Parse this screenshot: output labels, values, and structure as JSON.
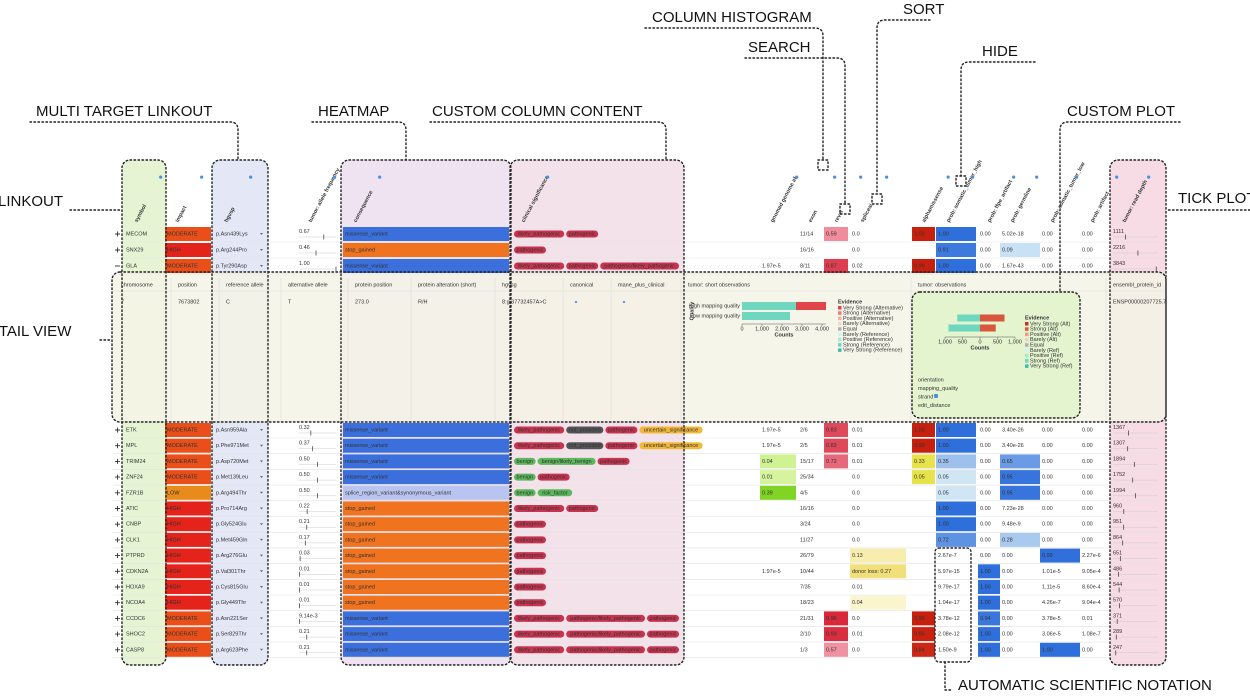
{
  "annotations": [
    "COLUMN HISTOGRAM",
    "SORT",
    "SEARCH",
    "HIDE",
    "MULTI TARGET LINKOUT",
    "HEATMAP",
    "CUSTOM COLUMN CONTENT",
    "CUSTOM PLOT",
    "LINKOUT",
    "TICK PLOT",
    "DETAIL VIEW",
    "AUTOMATIC SCIENTIFIC NOTATION"
  ],
  "table": {
    "headers": [
      "symbol",
      "impact",
      "hgvsp",
      "tumor: allele frequency",
      "consequence",
      "clinical significance",
      "gnomad genome af",
      "exon",
      "revel",
      "spliceai",
      "alphamissense",
      "prob: somatic_tumor_high",
      "prob: ffpe_artifact",
      "prob: germline",
      "prob: somatic_tumor_low",
      "prob: artifact",
      "tumor: read depth"
    ],
    "rows": [
      {
        "symbol": "MECOM",
        "impact": "MODERATE",
        "hgvsp": "p.Asn439Lys",
        "allele_frequency": "0.67",
        "consequence": "missense_variant",
        "clinical_significance": [
          "likely_pathogenic",
          "pathogenic"
        ],
        "exon": "11/14",
        "revel": "0.59",
        "spliceai": "0.0",
        "alphamissense": "1.00",
        "prob_somatic_tumor_high": "1.00",
        "prob_ffpe_artifact": "0.00",
        "prob_germline": "5.02e-18",
        "prob_somatic_tumor_low": "0.00",
        "prob_artifact": "0.00",
        "read_depth": "1111"
      },
      {
        "symbol": "SNX29",
        "impact": "HIGH",
        "hgvsp": "p.Arg244Pro",
        "allele_frequency": "0.46",
        "consequence": "stop_gained",
        "clinical_significance": [
          "pathogenic"
        ],
        "exon": "16/16",
        "spliceai": "0.0",
        "prob_somatic_tumor_high": "0.91",
        "prob_ffpe_artifact": "0.00",
        "prob_germline": "0.09",
        "prob_somatic_tumor_low": "0.00",
        "prob_artifact": "0.00",
        "read_depth": "2216"
      },
      {
        "symbol": "GLA",
        "impact": "MODERATE",
        "hgvsp": "p.Tyr290Asp",
        "allele_frequency": "1.00",
        "consequence": "missense_variant",
        "clinical_significance": [
          "likely_pathogenic",
          "pathogenic",
          "pathogenic/likely_pathogenic"
        ],
        "gnomad_genome_af": "1.97e-5",
        "exon": "8/11",
        "revel": "0.87",
        "spliceai": "0.02",
        "alphamissense": "0.99",
        "prob_somatic_tumor_high": "1.00",
        "prob_ffpe_artifact": "0.00",
        "prob_germline": "1.67e-43",
        "prob_somatic_tumor_low": "0.00",
        "prob_artifact": "0.00",
        "read_depth": "3843"
      },
      {
        "symbol": "ETK",
        "impact": "MODERATE",
        "hgvsp": "p.Asn959Ala",
        "allele_frequency": "0.32",
        "consequence": "missense_variant",
        "clinical_significance": [
          "likely_pathogenic",
          "not_provided",
          "pathogenic",
          "uncertain_significance"
        ],
        "gnomad_genome_af": "1.97e-5",
        "exon": "2/6",
        "revel": "0.83",
        "spliceai": "0.01",
        "alphamissense": "1.00",
        "prob_somatic_tumor_high": "1.00",
        "prob_ffpe_artifact": "0.00",
        "prob_germline": "3.40e-26",
        "prob_somatic_tumor_low": "0.00",
        "prob_artifact": "0.00",
        "read_depth": "1367"
      },
      {
        "symbol": "MPL",
        "impact": "MODERATE",
        "hgvsp": "p.Phe971Met",
        "allele_frequency": "0.37",
        "consequence": "missense_variant",
        "clinical_significance": [
          "likely_pathogenic",
          "not_provided",
          "pathogenic",
          "uncertain_significance"
        ],
        "gnomad_genome_af": "1.97e-5",
        "exon": "2/5",
        "revel": "0.83",
        "spliceai": "0.01",
        "alphamissense": "0.99",
        "prob_somatic_tumor_high": "1.00",
        "prob_ffpe_artifact": "0.00",
        "prob_germline": "3.40e-26",
        "prob_somatic_tumor_low": "0.00",
        "prob_artifact": "0.00",
        "read_depth": "1307"
      },
      {
        "symbol": "TRIM24",
        "impact": "MODERATE",
        "hgvsp": "p.Asp720Met",
        "allele_frequency": "0.50",
        "consequence": "missense_variant",
        "clinical_significance": [
          "benign",
          "benign/likely_benign",
          "pathogenic"
        ],
        "gnomad_genome_af": "0.04",
        "exon": "15/17",
        "revel": "0.72",
        "spliceai": "0.01",
        "alphamissense": "0.33",
        "prob_somatic_tumor_high": "0.35",
        "prob_ffpe_artifact": "0.00",
        "prob_germline": "0.65",
        "prob_somatic_tumor_low": "0.00",
        "prob_artifact": "0.00",
        "read_depth": "1894"
      },
      {
        "symbol": "ZNF24",
        "impact": "MODERATE",
        "hgvsp": "p.Met139Leu",
        "allele_frequency": "0.50",
        "consequence": "missense_variant",
        "clinical_significance": [
          "benign",
          "pathogenic"
        ],
        "gnomad_genome_af": "0.01",
        "exon": "25/34",
        "spliceai": "0.0",
        "alphamissense": "0.05",
        "prob_somatic_tumor_high": "0.05",
        "prob_ffpe_artifact": "0.00",
        "prob_germline": "0.95",
        "prob_somatic_tumor_low": "0.00",
        "prob_artifact": "0.00",
        "read_depth": "1752"
      },
      {
        "symbol": "FZR1B",
        "impact": "LOW",
        "hgvsp": "p.Arg494Thr",
        "allele_frequency": "0.50",
        "consequence": "splice_region_variant&synonymous_variant",
        "clinical_significance": [
          "benign",
          "risk_factor"
        ],
        "gnomad_genome_af": "0.39",
        "exon": "4/5",
        "spliceai": "0.0",
        "prob_somatic_tumor_high": "0.05",
        "prob_ffpe_artifact": "0.00",
        "prob_germline": "0.95",
        "prob_somatic_tumor_low": "0.00",
        "prob_artifact": "0.00",
        "read_depth": "1994"
      },
      {
        "symbol": "ATIC",
        "impact": "HIGH",
        "hgvsp": "p.Pro714Arg",
        "allele_frequency": "0.22",
        "consequence": "stop_gained",
        "clinical_significance": [
          "likely_pathogenic",
          "pathogenic"
        ],
        "exon": "16/16",
        "spliceai": "0.0",
        "prob_somatic_tumor_high": "1.00",
        "prob_ffpe_artifact": "0.00",
        "prob_germline": "7.23e-28",
        "prob_somatic_tumor_low": "0.00",
        "prob_artifact": "0.00",
        "read_depth": "960"
      },
      {
        "symbol": "CNBP",
        "impact": "HIGH",
        "hgvsp": "p.Gly524Glu",
        "allele_frequency": "0.21",
        "consequence": "stop_gained",
        "clinical_significance": [
          "pathogenic"
        ],
        "exon": "3/24",
        "spliceai": "0.0",
        "prob_somatic_tumor_high": "1.00",
        "prob_ffpe_artifact": "0.00",
        "prob_germline": "9.48e-9",
        "prob_somatic_tumor_low": "0.00",
        "prob_artifact": "0.00",
        "read_depth": "951"
      },
      {
        "symbol": "CLK1",
        "impact": "HIGH",
        "hgvsp": "p.Met459Gln",
        "allele_frequency": "0.17",
        "consequence": "stop_gained",
        "clinical_significance": [
          "pathogenic"
        ],
        "exon": "11/27",
        "spliceai": "0.0",
        "prob_somatic_tumor_high": "0.72",
        "prob_ffpe_artifact": "0.00",
        "prob_germline": "0.28",
        "prob_somatic_tumor_low": "0.00",
        "prob_artifact": "0.00",
        "read_depth": "864"
      },
      {
        "symbol": "PTPRD",
        "impact": "HIGH",
        "hgvsp": "p.Arg276Glu",
        "allele_frequency": "0.03",
        "consequence": "stop_gained",
        "clinical_significance": [
          "pathogenic"
        ],
        "exon": "26/79",
        "spliceai": "0.13",
        "prob_somatic_tumor_high": "2.67e-7",
        "prob_ffpe_artifact": "0.00",
        "prob_germline": "0.00",
        "prob_somatic_tumor_low": "0.99",
        "prob_artifact": "2.27e-6",
        "read_depth": "651"
      },
      {
        "symbol": "CDKN2A",
        "impact": "HIGH",
        "hgvsp": "p.Val301Thr",
        "allele_frequency": "0.01",
        "consequence": "stop_gained",
        "clinical_significance": [
          "pathogenic"
        ],
        "gnomad_genome_af": "1.97e-5",
        "exon": "10/44",
        "spliceai": "donor loss: 0.27",
        "prob_somatic_tumor_high": "5.97e-15",
        "prob_ffpe_artifact": "1.00",
        "prob_germline": "0.00",
        "prob_somatic_tumor_low": "1.01e-5",
        "prob_artifact": "9.05e-4",
        "read_depth": "486"
      },
      {
        "symbol": "HOXA9",
        "impact": "HIGH",
        "hgvsp": "p.Cys815Glu",
        "allele_frequency": "0.01",
        "consequence": "stop_gained",
        "clinical_significance": [
          "pathogenic"
        ],
        "exon": "7/35",
        "spliceai": "0.01",
        "prob_somatic_tumor_high": "9.79e-17",
        "prob_ffpe_artifact": "1.00",
        "prob_germline": "0.00",
        "prob_somatic_tumor_low": "1.11e-5",
        "prob_artifact": "8.60e-4",
        "read_depth": "544"
      },
      {
        "symbol": "NCOA4",
        "impact": "HIGH",
        "hgvsp": "p.Gly449Thr",
        "allele_frequency": "0.01",
        "consequence": "stop_gained",
        "clinical_significance": [
          "pathogenic"
        ],
        "exon": "18/23",
        "spliceai": "0.04",
        "prob_somatic_tumor_high": "1.04e-17",
        "prob_ffpe_artifact": "1.00",
        "prob_germline": "0.00",
        "prob_somatic_tumor_low": "4.26e-7",
        "prob_artifact": "9.04e-4",
        "read_depth": "570"
      },
      {
        "symbol": "CCDC6",
        "impact": "MODERATE",
        "hgvsp": "p.Asn221Ser",
        "allele_frequency": "9.14e-3",
        "consequence": "missense_variant",
        "clinical_significance": [
          "likely_pathogenic",
          "pathogenic/likely_pathogenic",
          "pathogenic"
        ],
        "exon": "21/31",
        "revel": "0.96",
        "spliceai": "0.0",
        "alphamissense": "0.99",
        "prob_somatic_tumor_high": "3.78e-12",
        "prob_ffpe_artifact": "0.94",
        "prob_germline": "0.00",
        "prob_somatic_tumor_low": "3.78e-5",
        "prob_artifact": "0.01",
        "read_depth": "371"
      },
      {
        "symbol": "SHOC2",
        "impact": "MODERATE",
        "hgvsp": "p.Ser829Thr",
        "allele_frequency": "0.21",
        "consequence": "missense_variant",
        "clinical_significance": [
          "likely_pathogenic",
          "pathogenic/likely_pathogenic",
          "pathogenic"
        ],
        "exon": "2/10",
        "revel": "0.93",
        "spliceai": "0.01",
        "alphamissense": "0.95",
        "prob_somatic_tumor_high": "2.08e-12",
        "prob_ffpe_artifact": "1.00",
        "prob_germline": "0.00",
        "prob_somatic_tumor_low": "3.06e-5",
        "prob_artifact": "1.08e-7",
        "read_depth": "289"
      },
      {
        "symbol": "CASP8",
        "impact": "MODERATE",
        "hgvsp": "p.Arg623Phe",
        "allele_frequency": "0.21",
        "consequence": "missense_variant",
        "clinical_significance": [
          "likely_pathogenic",
          "pathogenic/likely_pathogenic",
          "pathogenic"
        ],
        "exon": "1/3",
        "revel": "0.57",
        "spliceai": "0.0",
        "alphamissense": "0.84",
        "prob_somatic_tumor_high": "1.50e-9",
        "prob_ffpe_artifact": "1.00",
        "prob_germline": "0.00",
        "prob_somatic_tumor_low": "1.00",
        "prob_artifact": "0.00",
        "read_depth": "247"
      }
    ]
  },
  "detail": {
    "headers": [
      "chromosome",
      "position",
      "reference allele",
      "alternative allele",
      "protein position",
      "protein alteration (short)",
      "hgvsg",
      "canonical",
      "mane_plus_clinical",
      "tumor: short observations",
      "tumor: observations",
      "ensembl_protein_id"
    ],
    "cells": [
      "7",
      "7673802",
      "C",
      "T",
      "273.0",
      "R/H",
      "8:g.37732457A>C"
    ],
    "ensembl_protein_id": "ENSP00000207725.7",
    "short_observations": {
      "type": "bar",
      "y_label": "Quality",
      "x_label": "Counts",
      "categories": [
        "High mapping quality",
        "Low mapping quality"
      ],
      "series": [
        {
          "name": "Strong (Reference)",
          "color": "#6fd6c0",
          "values": [
            2700,
            2400
          ]
        },
        {
          "name": "Very Strong (Alternative)",
          "color": "#e0454a",
          "values": [
            1500,
            0
          ]
        }
      ],
      "xlim": [
        0,
        4200
      ],
      "xticks": [
        0,
        {
          "value": 1000,
          "label": "1,000"
        },
        {
          "value": 2000,
          "label": "2,000"
        },
        {
          "value": 3000,
          "label": "3,000"
        },
        {
          "value": 4000,
          "label": "4,000"
        }
      ],
      "legend_title": "Evidence",
      "legend": [
        {
          "name": "Very Strong (Alternative)",
          "color": "#e0454a"
        },
        {
          "name": "Strong (Alternative)",
          "color": "#ec7d72"
        },
        {
          "name": "Positive (Alternative)",
          "color": "#f4aea6"
        },
        {
          "name": "Barely (Alternative)",
          "color": "#f8d5d0"
        },
        {
          "name": "Equal",
          "color": "#b0b0b0"
        },
        {
          "name": "Barely (Reference)",
          "color": "#d2f3eb"
        },
        {
          "name": "Positive (Reference)",
          "color": "#a6e8d8"
        },
        {
          "name": "Strong (Reference)",
          "color": "#6fd6c0"
        },
        {
          "name": "Very Strong (Reference)",
          "color": "#3dbfa8"
        }
      ]
    },
    "observations": {
      "type": "bar",
      "x_label": "Counts",
      "categories": [
        null,
        null
      ],
      "series": [
        {
          "name": "Strong (Ref)",
          "color": "#6fd6c0",
          "values": [
            -650,
            -900
          ]
        },
        {
          "name": "Strong (Alt)",
          "color": "#d9553c",
          "values": [
            700,
            450
          ]
        }
      ],
      "xlim": [
        -1000,
        1000
      ],
      "xticks": [
        {
          "value": -1000,
          "label": "1,000"
        },
        {
          "value": -500,
          "label": "500"
        },
        0,
        500,
        {
          "value": 1000,
          "label": "1,000"
        }
      ],
      "legend_title": "Evidence",
      "legend": [
        {
          "name": "Very Strong (Alt)",
          "color": "#c9302c"
        },
        {
          "name": "Strong (Alt)",
          "color": "#d9553c"
        },
        {
          "name": "Positive (Alt)",
          "color": "#ee9a8a"
        },
        {
          "name": "Barely (Alt)",
          "color": "#f6ccc4"
        },
        {
          "name": "Equal",
          "color": "#b0b0b0"
        },
        {
          "name": "Barely (Ref)",
          "color": "#d2f3eb"
        },
        {
          "name": "Positive (Ref)",
          "color": "#a6e8d8"
        },
        {
          "name": "Strong (Ref)",
          "color": "#6fd6c0"
        },
        {
          "name": "Very Strong (Ref)",
          "color": "#3dbfa8"
        }
      ],
      "fields": [
        "orientation",
        "mapping_quality",
        "strand",
        "edit_distance"
      ]
    }
  }
}
